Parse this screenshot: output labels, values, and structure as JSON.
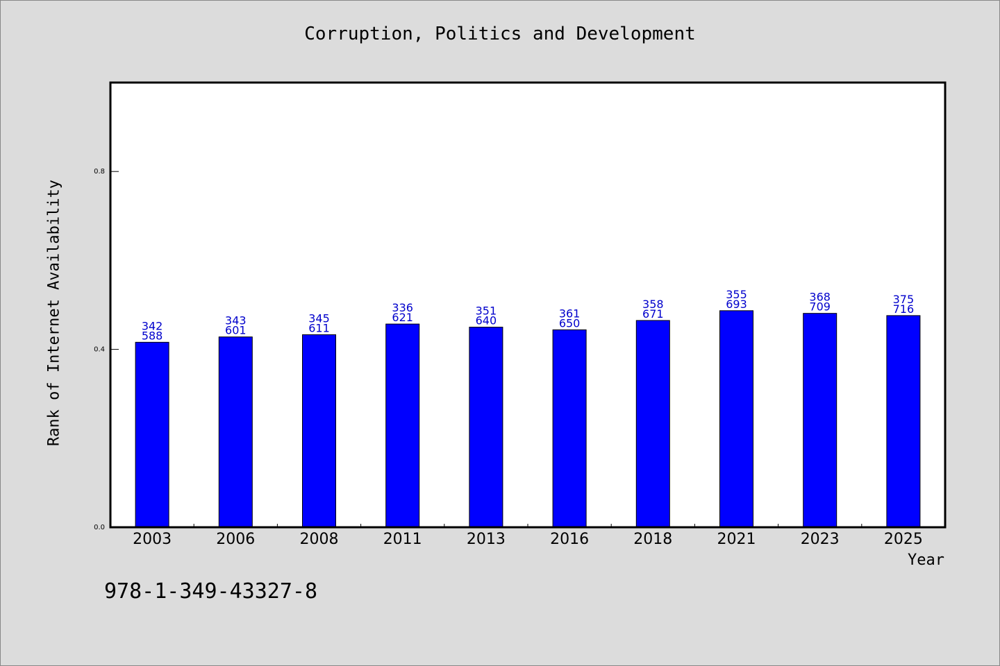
{
  "chart_data": {
    "type": "bar",
    "title": "Corruption, Politics and Development",
    "xlabel": "Year",
    "ylabel": "Rank of Internet Availability",
    "categories": [
      "2003",
      "2006",
      "2008",
      "2011",
      "2013",
      "2016",
      "2018",
      "2021",
      "2023",
      "2025"
    ],
    "values": [
      0.416,
      0.428,
      0.433,
      0.457,
      0.45,
      0.444,
      0.465,
      0.487,
      0.481,
      0.476
    ],
    "bar_labels": [
      [
        "342",
        "588"
      ],
      [
        "343",
        "601"
      ],
      [
        "345",
        "611"
      ],
      [
        "336",
        "621"
      ],
      [
        "351",
        "640"
      ],
      [
        "361",
        "650"
      ],
      [
        "358",
        "671"
      ],
      [
        "355",
        "693"
      ],
      [
        "368",
        "709"
      ],
      [
        "375",
        "716"
      ]
    ],
    "yticks": [
      "0.0",
      "0.4",
      "0.8"
    ],
    "ylim": [
      0,
      1.0
    ],
    "grid": false,
    "colors": {
      "bar": "#0000ff",
      "bar_label": "#0000cc",
      "background": "#dcdcdc",
      "plot_background": "#ffffff"
    }
  },
  "footer": {
    "isbn": "978-1-349-43327-8"
  }
}
